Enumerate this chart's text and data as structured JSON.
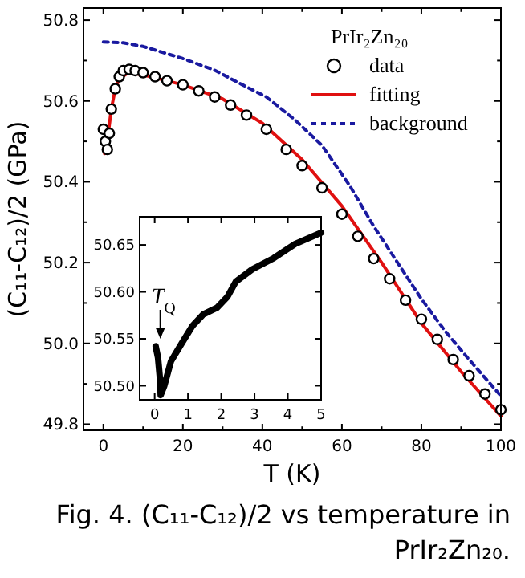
{
  "chart_data": [
    {
      "type": "line",
      "xlabel": "T (K)",
      "ylabel": "(C₁₁-C₁₂)/2 (GPa)",
      "legend_title": "PrIr₂Zn₂₀",
      "legend": "top right",
      "grid": false,
      "xlim": [
        -5,
        100
      ],
      "ylim": [
        49.785,
        50.83
      ],
      "xticks": [
        0,
        {
          "value": 10,
          "label": null
        },
        20,
        {
          "value": 30,
          "label": null
        },
        40,
        {
          "value": 50,
          "label": null
        },
        60,
        {
          "value": 70,
          "label": null
        },
        80,
        {
          "value": 90,
          "label": null
        },
        100
      ],
      "yticks": [
        {
          "value": 49.8,
          "label": "49.8"
        },
        {
          "value": 49.9,
          "label": null
        },
        {
          "value": 50.0,
          "label": "50.0"
        },
        {
          "value": 50.1,
          "label": null
        },
        {
          "value": 50.2,
          "label": "50.2"
        },
        {
          "value": 50.3,
          "label": null
        },
        {
          "value": 50.4,
          "label": "50.4"
        },
        {
          "value": 50.5,
          "label": null
        },
        {
          "value": 50.6,
          "label": "50.6"
        },
        {
          "value": 50.7,
          "label": null
        },
        {
          "value": 50.8,
          "label": "50.8"
        }
      ],
      "annotations": [
        "Fig. 4. (C₁₁-C₁₂)/2 vs temperature in PrIr₂Zn₂₀."
      ],
      "series": [
        {
          "name": "data",
          "type": "scatter",
          "marker": "circle",
          "color": "#000000",
          "x": [
            0,
            0.5,
            1,
            1.5,
            2,
            3,
            4,
            5,
            6.5,
            8,
            10,
            13,
            16,
            20,
            24,
            28,
            32,
            36,
            41,
            46,
            50,
            55,
            60,
            64,
            68,
            72,
            76,
            80,
            84,
            88,
            92,
            96,
            100
          ],
          "values": [
            50.53,
            50.5,
            50.48,
            50.52,
            50.58,
            50.63,
            50.66,
            50.675,
            50.678,
            50.675,
            50.67,
            50.66,
            50.65,
            50.64,
            50.625,
            50.61,
            50.59,
            50.565,
            50.53,
            50.48,
            50.44,
            50.385,
            50.32,
            50.265,
            50.21,
            50.16,
            50.107,
            50.06,
            50.01,
            49.96,
            49.92,
            49.875,
            49.836
          ]
        },
        {
          "name": "fitting",
          "line_style": "solid",
          "color": "#e01010",
          "x": [
            0.3,
            1,
            2,
            3,
            4,
            6,
            8,
            12,
            20,
            30,
            40,
            50,
            60,
            70,
            80,
            90,
            100
          ],
          "values": [
            50.47,
            50.5,
            50.58,
            50.63,
            50.655,
            50.668,
            50.668,
            50.66,
            50.64,
            50.605,
            50.545,
            50.455,
            50.34,
            50.2,
            50.05,
            49.93,
            49.82
          ]
        },
        {
          "name": "background",
          "line_style": "dashed",
          "color": "#1a1aa0",
          "x": [
            0,
            5,
            10,
            15,
            20,
            28,
            35,
            41,
            48,
            55,
            62,
            68,
            74,
            80,
            86,
            92,
            100
          ],
          "values": [
            50.746,
            50.744,
            50.735,
            50.72,
            50.705,
            50.676,
            50.64,
            50.61,
            50.555,
            50.49,
            50.39,
            50.29,
            50.2,
            50.11,
            50.03,
            49.96,
            49.87
          ]
        }
      ]
    },
    {
      "type": "line",
      "grid": false,
      "xlim": [
        -0.45,
        5
      ],
      "ylim": [
        50.485,
        50.68
      ],
      "xticks": [
        0,
        1,
        2,
        3,
        4,
        5
      ],
      "yticks": [
        {
          "value": 50.5,
          "label": "50.50"
        },
        {
          "value": 50.55,
          "label": "50.55"
        },
        {
          "value": 50.6,
          "label": "50.60"
        },
        {
          "value": 50.65,
          "label": "50.65"
        }
      ],
      "annotations": [
        {
          "text": "T$_{Q}$",
          "x": 0.17,
          "y": 50.55
        }
      ],
      "series": [
        {
          "color": "#000000",
          "x": [
            0.03,
            0.1,
            0.16,
            0.18,
            0.29,
            0.49,
            0.81,
            1.14,
            1.46,
            1.87,
            2.19,
            2.44,
            2.93,
            3.58,
            4.22,
            5.0
          ],
          "values": [
            50.542,
            50.53,
            50.507,
            50.49,
            50.5,
            50.526,
            50.545,
            50.564,
            50.576,
            50.583,
            50.595,
            50.611,
            50.624,
            50.636,
            50.651,
            50.663
          ]
        }
      ]
    }
  ]
}
